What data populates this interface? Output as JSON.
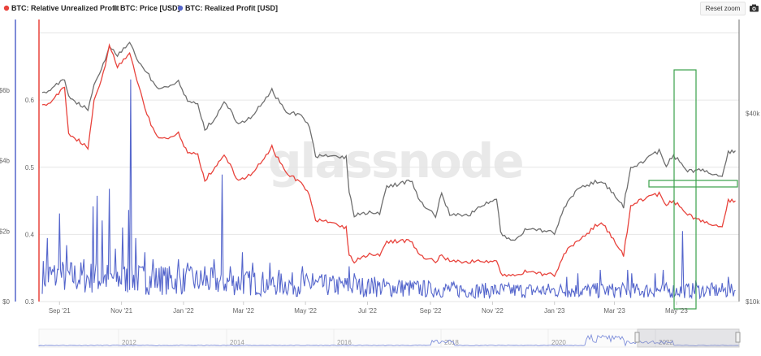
{
  "toolbar": {
    "reset_label": "Reset zoom",
    "camera_icon": "camera-icon"
  },
  "watermark": "glassnode",
  "legend": [
    {
      "label": "BTC: Relative Unrealized Profit",
      "color": "#e8433c"
    },
    {
      "label": "BTC: Price [USD]",
      "color": "#6f6f6f"
    },
    {
      "label": "BTC: Realized Profit [USD]",
      "color": "#5566cc"
    }
  ],
  "chart_data": {
    "type": "line",
    "x_ticks": [
      "Sep '21",
      "Nov '21",
      "Jan '22",
      "Mar '22",
      "May '22",
      "Jul '22",
      "Sep '22",
      "Nov '22",
      "Jan '23",
      "Mar '23",
      "May '23"
    ],
    "x_range": [
      "2021-08-15",
      "2023-06-30"
    ],
    "axes": {
      "realized_profit": {
        "ticks": [
          "$0",
          "$2b",
          "$4b",
          "$6b"
        ],
        "range": [
          0,
          8
        ],
        "color": "#5566cc"
      },
      "relative_unrealized_profit": {
        "ticks": [
          "0.3",
          "0.4",
          "0.5",
          "0.6"
        ],
        "range": [
          0.3,
          0.72
        ],
        "color": "#e8433c"
      },
      "price": {
        "ticks": [
          "$10k",
          "$40k"
        ],
        "scale": "log",
        "range": [
          10000,
          80000
        ],
        "color": "#6f6f6f"
      }
    },
    "series": [
      {
        "name": "BTC: Price [USD]",
        "color": "#6f6f6f",
        "points": [
          [
            "2021-08-15",
            46000
          ],
          [
            "2021-08-25",
            48500
          ],
          [
            "2021-09-06",
            51500
          ],
          [
            "2021-09-10",
            45500
          ],
          [
            "2021-09-20",
            43000
          ],
          [
            "2021-09-29",
            41500
          ],
          [
            "2021-10-05",
            49500
          ],
          [
            "2021-10-14",
            57500
          ],
          [
            "2021-10-20",
            65000
          ],
          [
            "2021-10-28",
            61500
          ],
          [
            "2021-11-09",
            67500
          ],
          [
            "2021-11-18",
            58000
          ],
          [
            "2021-11-26",
            54500
          ],
          [
            "2021-12-04",
            49000
          ],
          [
            "2021-12-15",
            48000
          ],
          [
            "2021-12-27",
            50500
          ],
          [
            "2022-01-05",
            43500
          ],
          [
            "2022-01-15",
            43000
          ],
          [
            "2022-01-22",
            35500
          ],
          [
            "2022-02-01",
            38500
          ],
          [
            "2022-02-10",
            44000
          ],
          [
            "2022-02-24",
            37000
          ],
          [
            "2022-03-10",
            39000
          ],
          [
            "2022-03-29",
            47500
          ],
          [
            "2022-04-12",
            40000
          ],
          [
            "2022-04-25",
            40000
          ],
          [
            "2022-05-05",
            36500
          ],
          [
            "2022-05-11",
            29000
          ],
          [
            "2022-05-25",
            29500
          ],
          [
            "2022-06-10",
            29000
          ],
          [
            "2022-06-13",
            22500
          ],
          [
            "2022-06-18",
            18900
          ],
          [
            "2022-07-01",
            19300
          ],
          [
            "2022-07-13",
            19200
          ],
          [
            "2022-07-20",
            23500
          ],
          [
            "2022-07-30",
            23700
          ],
          [
            "2022-08-14",
            24400
          ],
          [
            "2022-08-20",
            21200
          ],
          [
            "2022-09-06",
            18800
          ],
          [
            "2022-09-12",
            22300
          ],
          [
            "2022-09-20",
            18900
          ],
          [
            "2022-10-10",
            19100
          ],
          [
            "2022-10-26",
            20700
          ],
          [
            "2022-11-05",
            21200
          ],
          [
            "2022-11-09",
            16500
          ],
          [
            "2022-11-21",
            15700
          ],
          [
            "2022-12-05",
            17100
          ],
          [
            "2022-12-20",
            16800
          ],
          [
            "2023-01-01",
            16600
          ],
          [
            "2023-01-14",
            21000
          ],
          [
            "2023-01-25",
            23000
          ],
          [
            "2023-02-16",
            24500
          ],
          [
            "2023-03-10",
            20200
          ],
          [
            "2023-03-17",
            26500
          ],
          [
            "2023-03-25",
            27500
          ],
          [
            "2023-04-14",
            30300
          ],
          [
            "2023-04-21",
            27300
          ],
          [
            "2023-04-28",
            29400
          ],
          [
            "2023-05-12",
            26200
          ],
          [
            "2023-05-25",
            26400
          ],
          [
            "2023-06-15",
            25000
          ],
          [
            "2023-06-21",
            30000
          ],
          [
            "2023-06-28",
            30400
          ]
        ]
      },
      {
        "name": "BTC: Relative Unrealized Profit",
        "color": "#e8433c",
        "points": [
          [
            "2021-08-15",
            0.59
          ],
          [
            "2021-08-25",
            0.6
          ],
          [
            "2021-09-06",
            0.62
          ],
          [
            "2021-09-10",
            0.55
          ],
          [
            "2021-09-20",
            0.54
          ],
          [
            "2021-09-29",
            0.53
          ],
          [
            "2021-10-05",
            0.6
          ],
          [
            "2021-10-14",
            0.64
          ],
          [
            "2021-10-20",
            0.68
          ],
          [
            "2021-10-28",
            0.65
          ],
          [
            "2021-11-09",
            0.67
          ],
          [
            "2021-11-18",
            0.62
          ],
          [
            "2021-11-26",
            0.58
          ],
          [
            "2021-12-04",
            0.55
          ],
          [
            "2021-12-15",
            0.54
          ],
          [
            "2021-12-27",
            0.55
          ],
          [
            "2022-01-05",
            0.52
          ],
          [
            "2022-01-15",
            0.52
          ],
          [
            "2022-01-22",
            0.48
          ],
          [
            "2022-02-01",
            0.5
          ],
          [
            "2022-02-10",
            0.52
          ],
          [
            "2022-02-24",
            0.48
          ],
          [
            "2022-03-10",
            0.49
          ],
          [
            "2022-03-29",
            0.53
          ],
          [
            "2022-04-12",
            0.49
          ],
          [
            "2022-04-25",
            0.48
          ],
          [
            "2022-05-05",
            0.46
          ],
          [
            "2022-05-11",
            0.42
          ],
          [
            "2022-05-25",
            0.42
          ],
          [
            "2022-06-10",
            0.41
          ],
          [
            "2022-06-13",
            0.37
          ],
          [
            "2022-06-18",
            0.36
          ],
          [
            "2022-07-01",
            0.37
          ],
          [
            "2022-07-13",
            0.37
          ],
          [
            "2022-07-20",
            0.39
          ],
          [
            "2022-07-30",
            0.39
          ],
          [
            "2022-08-14",
            0.39
          ],
          [
            "2022-08-20",
            0.37
          ],
          [
            "2022-09-06",
            0.36
          ],
          [
            "2022-09-12",
            0.37
          ],
          [
            "2022-09-20",
            0.36
          ],
          [
            "2022-10-10",
            0.36
          ],
          [
            "2022-10-26",
            0.36
          ],
          [
            "2022-11-05",
            0.36
          ],
          [
            "2022-11-09",
            0.34
          ],
          [
            "2022-11-21",
            0.34
          ],
          [
            "2022-12-05",
            0.345
          ],
          [
            "2022-12-20",
            0.34
          ],
          [
            "2023-01-01",
            0.34
          ],
          [
            "2023-01-14",
            0.38
          ],
          [
            "2023-01-25",
            0.39
          ],
          [
            "2023-02-16",
            0.42
          ],
          [
            "2023-03-10",
            0.37
          ],
          [
            "2023-03-17",
            0.44
          ],
          [
            "2023-03-25",
            0.45
          ],
          [
            "2023-04-14",
            0.46
          ],
          [
            "2023-04-21",
            0.445
          ],
          [
            "2023-04-28",
            0.45
          ],
          [
            "2023-05-12",
            0.43
          ],
          [
            "2023-05-25",
            0.42
          ],
          [
            "2023-06-15",
            0.41
          ],
          [
            "2023-06-21",
            0.45
          ],
          [
            "2023-06-28",
            0.45
          ]
        ]
      },
      {
        "name": "BTC: Realized Profit [USD]",
        "color": "#5566cc",
        "baseline_b": 0.55,
        "spikes_b": [
          [
            "2021-08-20",
            1.8
          ],
          [
            "2021-09-01",
            2.5
          ],
          [
            "2021-09-08",
            1.6
          ],
          [
            "2021-09-25",
            1.2
          ],
          [
            "2021-10-04",
            2.7
          ],
          [
            "2021-10-08",
            3.0
          ],
          [
            "2021-10-13",
            2.3
          ],
          [
            "2021-10-20",
            3.2
          ],
          [
            "2021-10-26",
            1.5
          ],
          [
            "2021-11-02",
            2.1
          ],
          [
            "2021-11-08",
            2.6
          ],
          [
            "2021-11-10",
            6.3
          ],
          [
            "2021-11-15",
            1.8
          ],
          [
            "2021-11-24",
            1.4
          ],
          [
            "2021-12-02",
            1.2
          ],
          [
            "2021-12-10",
            1.0
          ],
          [
            "2021-12-27",
            1.2
          ],
          [
            "2022-01-05",
            1.1
          ],
          [
            "2022-01-22",
            1.0
          ],
          [
            "2022-01-31",
            1.2
          ],
          [
            "2022-02-08",
            3.6
          ],
          [
            "2022-02-16",
            1.0
          ],
          [
            "2022-02-28",
            1.4
          ],
          [
            "2022-03-10",
            1.1
          ],
          [
            "2022-03-27",
            1.1
          ],
          [
            "2022-04-05",
            0.9
          ],
          [
            "2022-04-28",
            1.0
          ],
          [
            "2022-05-08",
            0.8
          ],
          [
            "2022-06-13",
            1.0
          ],
          [
            "2022-06-18",
            0.8
          ],
          [
            "2022-07-08",
            0.7
          ],
          [
            "2022-08-01",
            0.6
          ],
          [
            "2022-09-01",
            0.5
          ],
          [
            "2022-10-01",
            0.45
          ],
          [
            "2022-11-10",
            0.5
          ],
          [
            "2022-12-05",
            0.4
          ],
          [
            "2023-01-13",
            0.7
          ],
          [
            "2023-01-24",
            0.8
          ],
          [
            "2023-02-15",
            0.9
          ],
          [
            "2023-03-14",
            0.9
          ],
          [
            "2023-03-18",
            0.8
          ],
          [
            "2023-04-10",
            0.8
          ],
          [
            "2023-04-18",
            0.9
          ],
          [
            "2023-05-07",
            2.0
          ],
          [
            "2023-05-20",
            0.6
          ],
          [
            "2023-06-21",
            0.7
          ],
          [
            "2023-06-24",
            0.5
          ]
        ]
      }
    ],
    "annotations": [
      {
        "type": "box",
        "color": "#3aa14a"
      },
      {
        "type": "box",
        "color": "#3aa14a"
      }
    ],
    "navigator": {
      "labels": [
        "2012",
        "2014",
        "2016",
        "2018",
        "2020",
        "2022"
      ]
    },
    "grid": true,
    "legend_position": "top-left"
  }
}
